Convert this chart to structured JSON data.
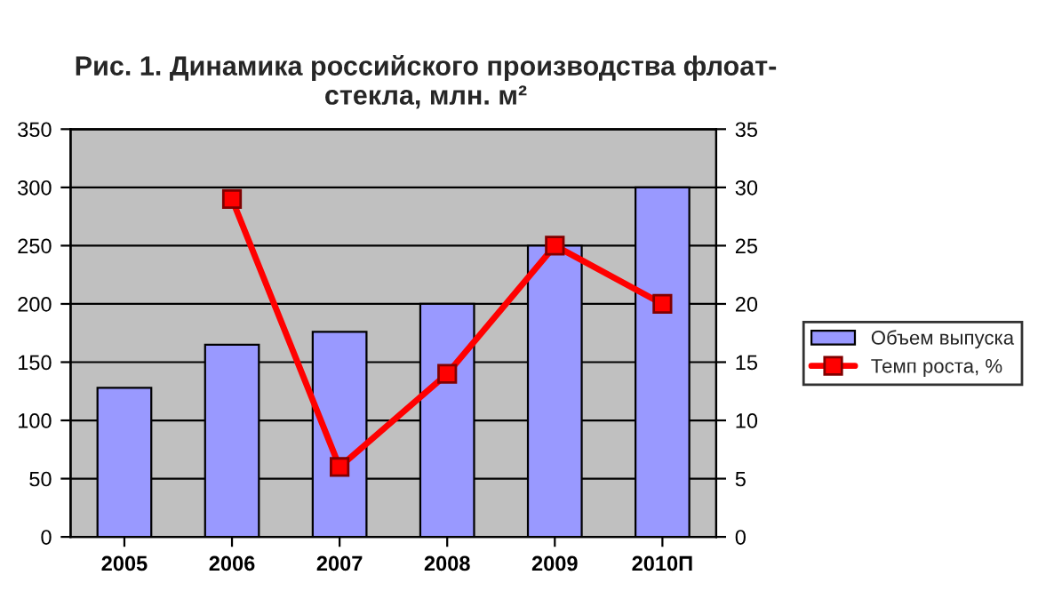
{
  "chart_data": {
    "type": "bar",
    "title": "Рис. 1. Динамика российского производства флоат-\nстекла, млн. м²",
    "categories": [
      "2005",
      "2006",
      "2007",
      "2008",
      "2009",
      "2010П"
    ],
    "series": [
      {
        "name": "Объем выпуска",
        "color": "#9999ff",
        "values": [
          128,
          165,
          176,
          200,
          250,
          300
        ]
      },
      {
        "name": "Темп роста, %",
        "type": "line",
        "axis": "y2",
        "color": "#ff0000",
        "marker": "square",
        "values": [
          null,
          29,
          6,
          14,
          25,
          20
        ]
      }
    ],
    "ylim": [
      0,
      350
    ],
    "yticks": [
      0,
      50,
      100,
      150,
      200,
      250,
      300,
      350
    ],
    "y2lim": [
      0,
      35
    ],
    "y2ticks": [
      0,
      5,
      10,
      15,
      20,
      25,
      30,
      35
    ],
    "grid": "y",
    "legend": "right"
  }
}
